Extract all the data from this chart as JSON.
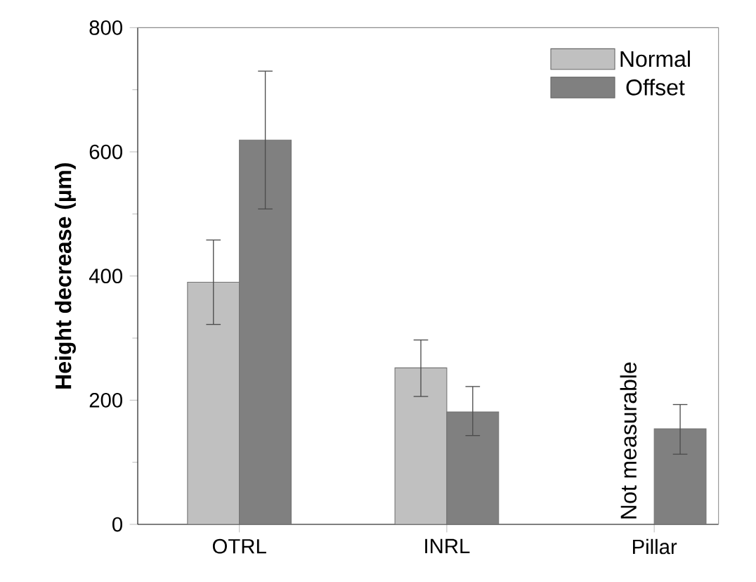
{
  "chart_data": {
    "type": "bar",
    "ylabel": "Height decrease (µm)",
    "categories": [
      "OTRL",
      "INRL",
      "Pillar"
    ],
    "series": [
      {
        "name": "Normal",
        "color": "#c0c0c0",
        "values": [
          390,
          252,
          null
        ],
        "errors": [
          [
            322,
            458
          ],
          [
            206,
            297
          ],
          null
        ]
      },
      {
        "name": "Offset",
        "color": "#808080",
        "values": [
          619,
          181,
          154
        ],
        "errors": [
          [
            508,
            730
          ],
          [
            143,
            222
          ],
          [
            113,
            193
          ]
        ]
      }
    ],
    "ylim": [
      0,
      800
    ],
    "yticks": [
      0,
      200,
      400,
      600,
      800
    ],
    "legend": "top right",
    "grid": false,
    "annotations": [
      "Not measurable"
    ]
  }
}
